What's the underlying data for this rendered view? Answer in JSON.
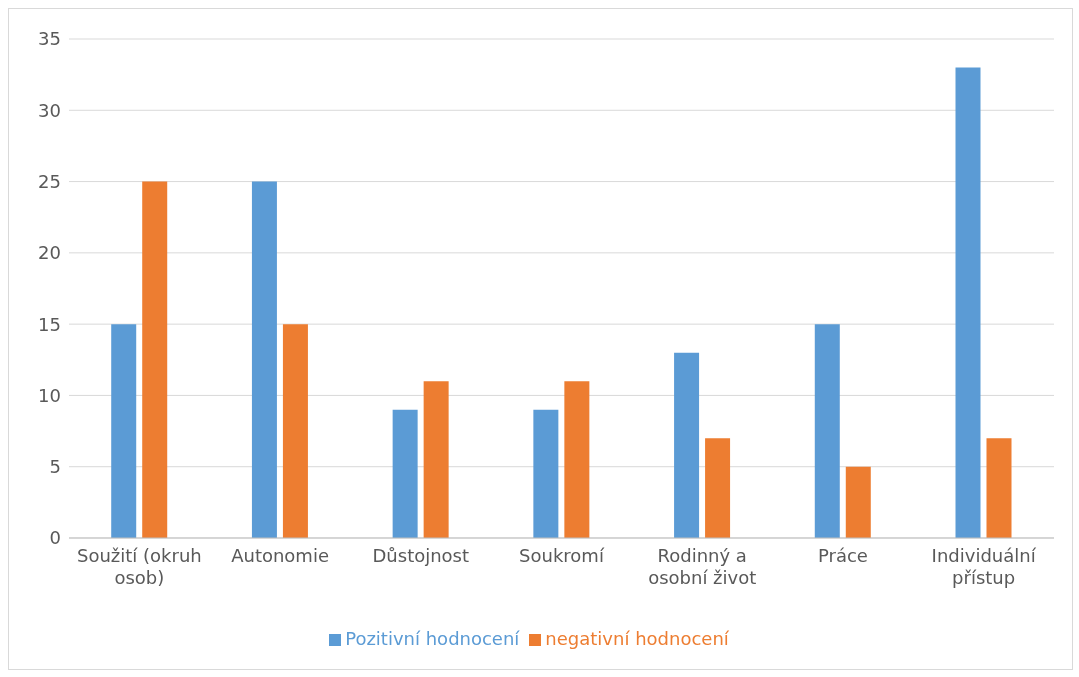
{
  "chart_data": {
    "type": "bar",
    "categories": [
      "Soužití (okruh osob)",
      "Autonomie",
      "Důstojnost",
      "Soukromí",
      "Rodinný a osobní život",
      "Práce",
      "Individuální přístup"
    ],
    "series": [
      {
        "name": "Pozitivní hodnocení",
        "color": "#5b9bd5",
        "values": [
          15,
          25,
          9,
          9,
          13,
          15,
          33
        ]
      },
      {
        "name": "negativní hodnocení",
        "color": "#ed7d31",
        "values": [
          25,
          15,
          11,
          11,
          7,
          5,
          7
        ]
      }
    ],
    "ylim": [
      0,
      35
    ],
    "yticks": [
      0,
      5,
      10,
      15,
      20,
      25,
      30,
      35
    ],
    "grid": "y",
    "legend": "bottom"
  }
}
